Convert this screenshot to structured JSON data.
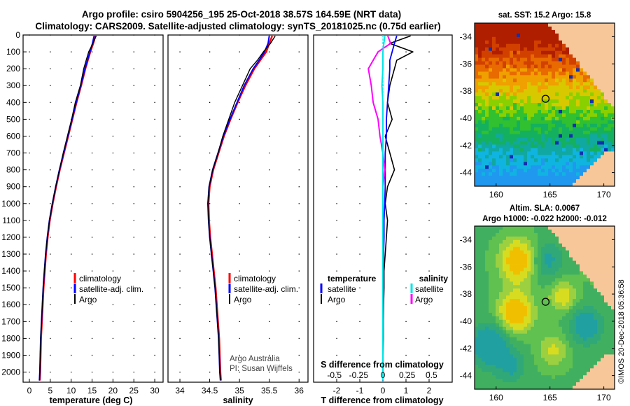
{
  "header": {
    "title_line1": "Argo profile: csiro 5904256_195 25-Oct-2018 38.57S 164.59E (NRT data)",
    "title_line2": "Climatology: CARS2009. Satellite-adjusted climatology: synTS_20181025.nc (0.75d earlier)"
  },
  "colors": {
    "climatology": "#ff0000",
    "satellite": "#0000ff",
    "argo": "#000000",
    "sat_salinity": "#00e5e5",
    "argo_salinity_diff": "#ff00ff"
  },
  "chart_data": [
    {
      "type": "line",
      "name": "temperature",
      "xlabel": "temperature (deg C)",
      "xlim": [
        -1.5,
        32
      ],
      "xticks": [
        0,
        5,
        10,
        15,
        20,
        25,
        30
      ],
      "ylim": [
        2060,
        0
      ],
      "yticks": [
        0,
        100,
        200,
        300,
        400,
        500,
        600,
        700,
        800,
        900,
        1000,
        1100,
        1200,
        1300,
        1400,
        1500,
        1600,
        1700,
        1800,
        1900,
        2000
      ],
      "depth": [
        5,
        50,
        100,
        150,
        200,
        300,
        400,
        500,
        600,
        700,
        800,
        900,
        1000,
        1100,
        1200,
        1300,
        1400,
        1500,
        1600,
        1700,
        1800,
        1900,
        2000,
        2050
      ],
      "series": [
        {
          "name": "climatology",
          "values": [
            15.8,
            15.3,
            14.6,
            14.0,
            13.4,
            12.4,
            11.3,
            10.3,
            9.3,
            8.3,
            7.3,
            6.4,
            5.6,
            4.9,
            4.4,
            4.0,
            3.7,
            3.4,
            3.2,
            3.0,
            2.8,
            2.7,
            2.6,
            2.5
          ]
        },
        {
          "name": "satellite-adj. clim.",
          "values": [
            15.5,
            15.1,
            14.5,
            13.9,
            13.3,
            12.3,
            11.2,
            10.2,
            9.2,
            8.2,
            7.2,
            6.3,
            5.5,
            4.8,
            4.3,
            3.9,
            3.6,
            3.3,
            3.1,
            2.9,
            2.7,
            2.6,
            2.5,
            2.4
          ]
        },
        {
          "name": "Argo",
          "values": [
            16.0,
            15.2,
            14.2,
            13.6,
            13.0,
            12.2,
            11.0,
            10.1,
            9.1,
            8.1,
            7.2,
            6.3,
            5.5,
            4.8,
            4.3,
            3.9,
            3.6,
            3.3,
            3.1,
            2.9,
            2.7,
            2.6,
            2.5,
            2.4
          ]
        }
      ],
      "legend": [
        "climatology",
        "satellite-adj. clim.",
        "Argo"
      ]
    },
    {
      "type": "line",
      "name": "salinity",
      "xlabel": "salinity",
      "xlim": [
        33.8,
        36.15
      ],
      "xticks": [
        34,
        34.5,
        35,
        35.5,
        36
      ],
      "ylim": [
        2060,
        0
      ],
      "depth": [
        5,
        50,
        100,
        150,
        200,
        300,
        400,
        500,
        600,
        700,
        800,
        900,
        1000,
        1100,
        1200,
        1300,
        1400,
        1500,
        1600,
        1700,
        1800,
        1900,
        2000,
        2050
      ],
      "series": [
        {
          "name": "climatology",
          "values": [
            35.55,
            35.5,
            35.45,
            35.35,
            35.25,
            35.1,
            34.97,
            34.85,
            34.74,
            34.65,
            34.56,
            34.5,
            34.48,
            34.49,
            34.51,
            34.54,
            34.57,
            34.6,
            34.62,
            34.64,
            34.66,
            34.67,
            34.68,
            34.69
          ]
        },
        {
          "name": "satellite-adj. clim.",
          "values": [
            35.5,
            35.48,
            35.42,
            35.33,
            35.23,
            35.08,
            34.96,
            34.84,
            34.73,
            34.64,
            34.55,
            34.49,
            34.47,
            34.48,
            34.5,
            34.53,
            34.56,
            34.59,
            34.61,
            34.63,
            34.65,
            34.66,
            34.67,
            34.68
          ]
        },
        {
          "name": "Argo",
          "values": [
            35.6,
            35.52,
            35.4,
            35.3,
            35.18,
            35.05,
            34.92,
            34.82,
            34.72,
            34.64,
            34.55,
            34.49,
            34.47,
            34.48,
            34.5,
            34.53,
            34.56,
            34.59,
            34.61,
            34.63,
            34.65,
            34.66,
            34.67,
            34.68
          ]
        }
      ],
      "legend": [
        "climatology",
        "satellite-adj. clim.",
        "Argo"
      ],
      "annotation_line1": "Argo Australia",
      "annotation_line2": "PI: Susan Wijffels"
    },
    {
      "type": "line",
      "name": "differences",
      "xlabel": "T difference from climatology",
      "xlabel2": "S difference from climatology",
      "xlim": [
        -3,
        3
      ],
      "xticks": [
        -2,
        -1,
        0,
        1,
        2
      ],
      "xticks_labels": [
        "-2",
        "-1",
        "0",
        "1",
        "2"
      ],
      "s_xticks": [
        -0.5,
        -0.25,
        0,
        0.25,
        0.5
      ],
      "s_xticks_labels": [
        "-0.5",
        "-0.25",
        "0",
        "0.25",
        "0.5"
      ],
      "ylim": [
        2060,
        0
      ],
      "depth": [
        5,
        50,
        100,
        150,
        200,
        300,
        400,
        500,
        600,
        700,
        800,
        900,
        1000,
        1100,
        1200,
        1300,
        1400,
        1500,
        1600,
        1700,
        1800,
        1900,
        2000,
        2050
      ],
      "series": [
        {
          "name": "T satellite",
          "values": [
            0.6,
            0.5,
            0.4,
            0.3,
            0.3,
            0.25,
            0.2,
            0.15,
            0.15,
            0.1,
            0.1,
            0.1,
            0.08,
            0.05,
            0.05,
            0.03,
            0.02,
            0.02,
            0.01,
            0.01,
            0.0,
            0.0,
            0.0,
            0.0
          ]
        },
        {
          "name": "T Argo",
          "values": [
            1.2,
            0.3,
            1.3,
            0.6,
            0.5,
            0.3,
            0.2,
            0.4,
            0.1,
            0.3,
            0.5,
            0.2,
            0.1,
            0.2,
            0.15,
            0.1,
            0.05,
            0.05,
            0.03,
            0.02,
            0.02,
            0.01,
            0.01,
            0.0
          ]
        },
        {
          "name": "S satellite",
          "values": [
            0.02,
            0.01,
            0.0,
            0.0,
            0.0,
            -0.01,
            0.0,
            0.0,
            0.0,
            0.0,
            0.0,
            0.0,
            0.0,
            0.0,
            0.0,
            0.0,
            0.0,
            0.0,
            0.0,
            0.0,
            0.0,
            0.0,
            0.0,
            0.0
          ]
        },
        {
          "name": "S Argo",
          "values": [
            0.05,
            0.08,
            -0.05,
            -0.1,
            -0.15,
            -0.12,
            -0.1,
            -0.05,
            -0.03,
            0.0,
            0.02,
            0.0,
            0.0,
            0.0,
            0.0,
            0.0,
            0.0,
            0.0,
            0.0,
            0.0,
            0.0,
            0.0,
            0.0,
            0.0
          ]
        }
      ],
      "legend_temperature_title": "temperature",
      "legend_salinity_title": "salinity",
      "legend_items": [
        "satellite",
        "Argo"
      ]
    },
    {
      "type": "heatmap",
      "name": "sst_map",
      "title": "sat. SST: 15.2 Argo: 15.8",
      "xlim": [
        158,
        171
      ],
      "xticks": [
        160,
        165,
        170
      ],
      "ylim": [
        -45,
        -33
      ],
      "yticks": [
        -34,
        -36,
        -38,
        -40,
        -42,
        -44
      ],
      "profile_lon": 164.59,
      "profile_lat": -38.57
    },
    {
      "type": "heatmap",
      "name": "sla_map",
      "title_line1": "Altim. SLA: 0.0067",
      "title_line2": "Argo h1000: -0.022 h2000: -0.012",
      "xlim": [
        158,
        171
      ],
      "xticks": [
        160,
        165,
        170
      ],
      "ylim": [
        -45,
        -33
      ],
      "yticks": [
        -34,
        -36,
        -38,
        -40,
        -42,
        -44
      ],
      "profile_lon": 164.59,
      "profile_lat": -38.57
    }
  ],
  "watermark": "©IMOS 20-Dec-2018 05:36:58"
}
